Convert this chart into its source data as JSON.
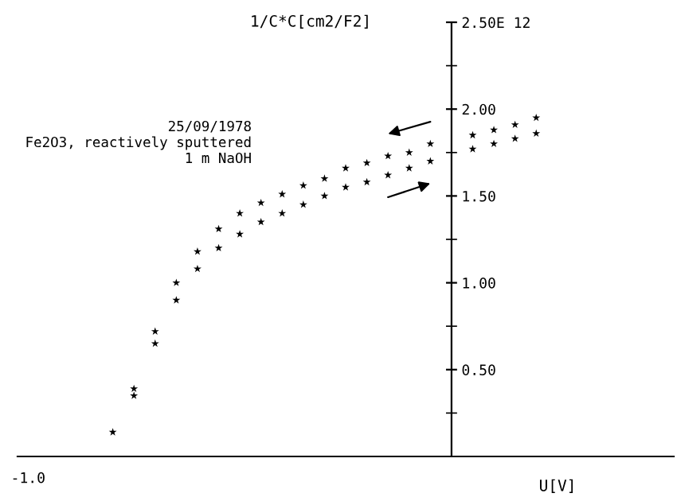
{
  "chart_data": {
    "type": "scatter",
    "xlabel": "U[V]",
    "ylabel": "1/C*C[cm2/F2]",
    "annotations": [
      "25/09/1978",
      "Fe2O3, reactively sputtered",
      "1 m NaOH",
      "-1.0"
    ],
    "marker": "star",
    "ylim": [
      0,
      2.5
    ],
    "yticks": [
      {
        "value": 0.5,
        "label": "0.50"
      },
      {
        "value": 1.0,
        "label": "1.00"
      },
      {
        "value": 1.5,
        "label": "1.50"
      },
      {
        "value": 2.0,
        "label": "2.00"
      },
      {
        "value": 2.5,
        "label": "2.50E 12"
      }
    ],
    "categories": [
      null,
      null,
      null,
      null,
      null,
      null,
      null,
      null,
      null,
      null,
      null,
      null,
      null,
      null,
      null,
      null,
      null,
      null,
      null,
      null,
      null,
      null,
      null,
      null,
      null,
      null,
      null,
      null,
      null,
      null,
      null
    ],
    "series": [
      {
        "color": "#000000",
        "values": [
          null,
          null,
          null,
          null,
          null,
          0.39,
          0.72,
          1.0,
          1.18,
          1.31,
          1.4,
          1.46,
          1.51,
          1.56,
          1.6,
          1.66,
          1.69,
          1.73,
          1.75,
          1.8,
          null,
          1.85,
          1.88,
          1.91,
          1.95,
          null,
          null,
          null,
          null,
          null,
          null
        ]
      },
      {
        "color": "#000000",
        "values": [
          null,
          null,
          null,
          null,
          0.14,
          0.35,
          0.65,
          0.9,
          1.08,
          1.2,
          1.28,
          1.35,
          1.4,
          1.45,
          1.5,
          1.55,
          1.58,
          1.62,
          1.66,
          1.7,
          null,
          1.77,
          1.8,
          1.83,
          1.86,
          null,
          null,
          null,
          null,
          null,
          null
        ]
      }
    ]
  }
}
